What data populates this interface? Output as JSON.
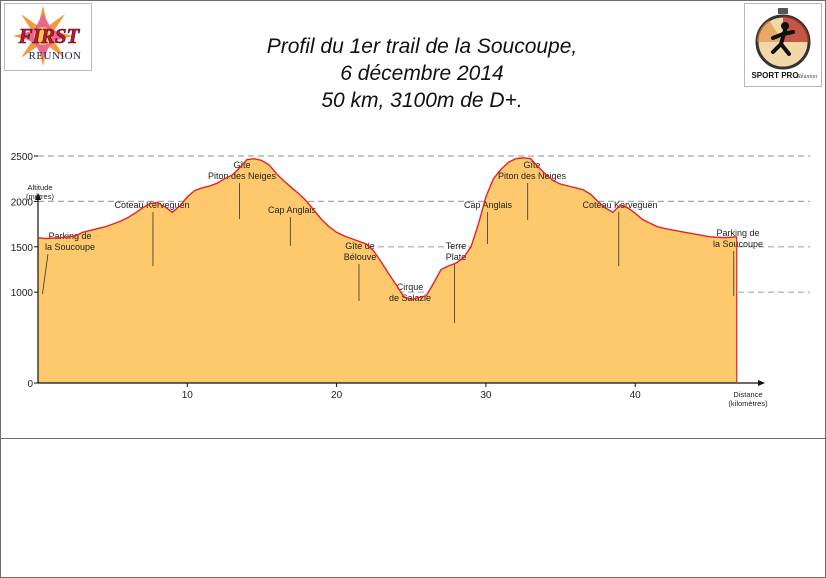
{
  "title_lines": [
    "Profil du 1er trail de la Soucoupe,",
    "6 décembre 2014",
    "50 km, 3100m de D+."
  ],
  "logos": {
    "first_reunion": {
      "text": "FIRST",
      "subtext": "REUNION",
      "icon": "sun-logo"
    },
    "sport_pro": {
      "text": "SPORT PRO",
      "subtext": "Réunion",
      "icon": "runner-stopwatch-logo"
    }
  },
  "chart_data": {
    "type": "area",
    "title": "Profil du 1er trail de la Soucoupe, 6 décembre 2014, 50 km, 3100m de D+.",
    "xlabel": [
      "Distance",
      "(kilomètres)"
    ],
    "ylabel": [
      "Altitude",
      "(mètres)"
    ],
    "xlim": [
      0,
      49
    ],
    "ylim": [
      0,
      2700
    ],
    "x_ticks": [
      10,
      20,
      30,
      40
    ],
    "y_ticks": [
      0,
      1000,
      1500,
      2000,
      2500
    ],
    "gridlines_y": [
      1000,
      1500,
      2000,
      2500
    ],
    "grid": "dashed horizontal",
    "colors": {
      "fill": "#fec96c",
      "line": "#e8202a"
    },
    "series": [
      {
        "x": [
          0,
          0.5,
          1.5,
          2.5,
          3,
          4,
          4.5,
          5,
          5.5,
          6,
          6.5,
          7,
          7.5,
          8,
          8.5,
          9,
          9.5,
          10,
          10.5,
          11,
          11.5,
          12,
          12.5,
          13,
          13.5,
          14,
          14.5,
          15,
          15.5,
          16,
          16.5,
          17,
          17.5,
          18,
          18.5,
          19,
          19.5,
          20,
          20.5,
          21,
          21.5,
          22,
          22.5,
          23,
          23.5,
          24,
          24.5,
          25,
          25.5,
          26,
          26.5,
          27,
          27.5,
          28,
          28.5,
          29,
          29.5,
          30,
          30.5,
          31,
          31.5,
          32,
          32.5,
          33,
          33.5,
          34,
          34.5,
          35,
          35.5,
          36,
          36.5,
          37,
          37.5,
          38,
          38.5,
          39,
          39.5,
          40,
          40.5,
          41,
          41.5,
          42,
          43,
          44,
          45,
          46,
          46.8
        ],
        "y": [
          1600,
          1590,
          1600,
          1620,
          1660,
          1700,
          1720,
          1750,
          1780,
          1820,
          1870,
          1930,
          1975,
          1990,
          1940,
          1880,
          1950,
          2050,
          2120,
          2150,
          2170,
          2200,
          2250,
          2290,
          2370,
          2460,
          2470,
          2450,
          2400,
          2300,
          2220,
          2150,
          2080,
          2000,
          1900,
          1800,
          1720,
          1660,
          1620,
          1590,
          1560,
          1530,
          1450,
          1330,
          1200,
          1080,
          950,
          920,
          940,
          960,
          1100,
          1250,
          1290,
          1320,
          1380,
          1500,
          1750,
          2050,
          2250,
          2350,
          2430,
          2470,
          2480,
          2470,
          2380,
          2300,
          2230,
          2190,
          2170,
          2150,
          2130,
          2080,
          2000,
          1930,
          1880,
          1960,
          1930,
          1870,
          1800,
          1760,
          1720,
          1700,
          1670,
          1640,
          1610,
          1600,
          1610
        ]
      }
    ],
    "annotations": [
      {
        "x": 0.3,
        "lines": [
          "Parking de",
          "la Soucoupe"
        ]
      },
      {
        "x": 7.7,
        "lines": [
          "Coteau Kerveguen"
        ]
      },
      {
        "x": 13.5,
        "lines": [
          "Gîte",
          "Piton des Neiges"
        ]
      },
      {
        "x": 16.9,
        "lines": [
          "Cap Anglais"
        ]
      },
      {
        "x": 21.5,
        "lines": [
          "Gîte de",
          "Bélouve"
        ]
      },
      {
        "x": 24.8,
        "lines": [
          "Cirque",
          "de Salazie"
        ]
      },
      {
        "x": 27.9,
        "lines": [
          "Terre",
          "Plate"
        ]
      },
      {
        "x": 30.1,
        "lines": [
          "Cap Anglais"
        ]
      },
      {
        "x": 32.8,
        "lines": [
          "Gîte",
          "Piton des Neiges"
        ]
      },
      {
        "x": 38.9,
        "lines": [
          "Coteau Kerveguen"
        ]
      },
      {
        "x": 46.6,
        "lines": [
          "Parking de",
          "la Soucoupe"
        ]
      }
    ]
  }
}
